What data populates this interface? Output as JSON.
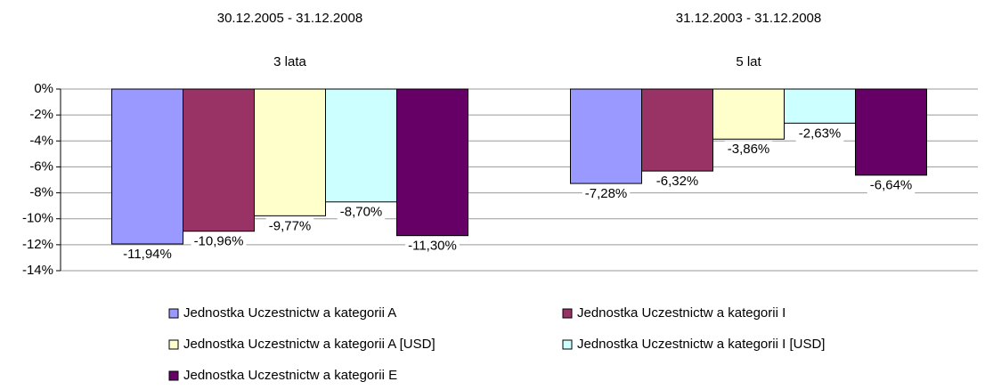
{
  "chart_data": {
    "type": "bar",
    "categories": [
      [
        "30.12.2005 - 31.12.2008",
        "3 lata"
      ],
      [
        "31.12.2003 - 31.12.2008",
        "5 lat"
      ]
    ],
    "series": [
      {
        "name": "Jednostka Uczestnictw a kategorii A",
        "color": "#9999ff",
        "values": [
          -11.94,
          -7.28
        ],
        "value_labels": [
          "-11,94%",
          "-7,28%"
        ]
      },
      {
        "name": "Jednostka Uczestnictw a kategorii I",
        "color": "#993366",
        "values": [
          -10.96,
          -6.32
        ],
        "value_labels": [
          "-10,96%",
          "-6,32%"
        ]
      },
      {
        "name": "Jednostka Uczestnictw a kategorii A [USD]",
        "color": "#ffffcc",
        "values": [
          -9.77,
          -3.86
        ],
        "value_labels": [
          "-9,77%",
          "-3,86%"
        ]
      },
      {
        "name": "Jednostka Uczestnictw a kategorii I [USD]",
        "color": "#ccffff",
        "values": [
          -8.7,
          -2.63
        ],
        "value_labels": [
          "-8,70%",
          "-2,63%"
        ]
      },
      {
        "name": "Jednostka Uczestnictw a kategorii E",
        "color": "#660066",
        "values": [
          -11.3,
          -6.64
        ],
        "value_labels": [
          "-11,30%",
          "-6,64%"
        ]
      }
    ],
    "ylim": [
      -14,
      0
    ],
    "yticks": [
      {
        "value": 0,
        "label": "0%"
      },
      {
        "value": -2,
        "label": "-2%"
      },
      {
        "value": -4,
        "label": "-4%"
      },
      {
        "value": -6,
        "label": "-6%"
      },
      {
        "value": -8,
        "label": "-8%"
      },
      {
        "value": -10,
        "label": "-10%"
      },
      {
        "value": -12,
        "label": "-12%"
      },
      {
        "value": -14,
        "label": "-14%"
      }
    ],
    "grid": true
  }
}
